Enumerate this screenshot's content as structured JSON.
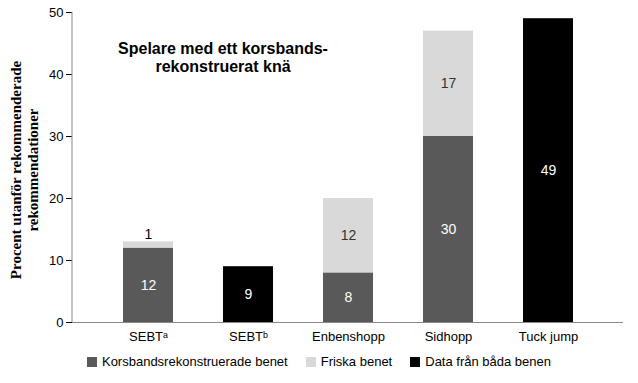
{
  "chart_data": {
    "type": "bar",
    "title": "Spelare med ett korsbands-\nrekonstruerat knä",
    "y_label": "Procent utanför rekommenderade\nrekommendationer",
    "categories": [
      "SEBTᵃ",
      "SEBTᵇ",
      "Enbenshopp",
      "Sidhopp",
      "Tuck jump"
    ],
    "series": [
      {
        "name": "Korsbandsrekonstruerade benet",
        "color": "#595959",
        "values": [
          12,
          null,
          8,
          30,
          null
        ]
      },
      {
        "name": "Friska benet",
        "color": "#d9d9d9",
        "values": [
          1,
          null,
          12,
          17,
          null
        ]
      },
      {
        "name": "Data från båda benen",
        "color": "#000000",
        "values": [
          null,
          9,
          null,
          null,
          49
        ]
      }
    ],
    "ylim": [
      0,
      50
    ],
    "yticks": [
      0,
      10,
      20,
      30,
      40,
      50
    ],
    "stacked": true,
    "data_labels": true,
    "legend": "bottom"
  }
}
